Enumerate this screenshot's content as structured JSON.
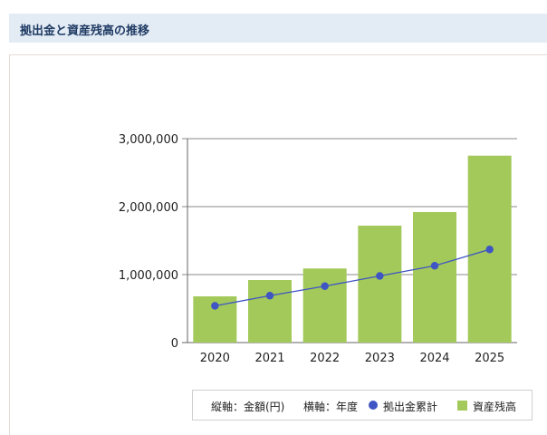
{
  "header": {
    "title": "拠出金と資産残高の推移"
  },
  "legend": {
    "yaxis_label": "縦軸：金額(円)",
    "xaxis_label": "横軸：年度",
    "line_label": "拠出金累計",
    "bar_label": "資産残高"
  },
  "colors": {
    "bar": "#a3c95a",
    "line": "#3f55c4",
    "header_bg": "#e3ecf5",
    "header_text": "#1f3a63"
  },
  "chart_data": {
    "type": "bar",
    "categories": [
      "2020",
      "2021",
      "2022",
      "2023",
      "2024",
      "2025"
    ],
    "series": [
      {
        "name": "資産残高",
        "type": "bar",
        "values": [
          680000,
          920000,
          1090000,
          1720000,
          1920000,
          2750000
        ]
      },
      {
        "name": "拠出金累計",
        "type": "line",
        "values": [
          540000,
          690000,
          830000,
          980000,
          1130000,
          1370000
        ]
      }
    ],
    "yticks": [
      "0",
      "1,000,000",
      "2,000,000",
      "3,000,000"
    ],
    "ytick_values": [
      0,
      1000000,
      2000000,
      3000000
    ],
    "ylim": [
      0,
      3000000
    ],
    "grid": true,
    "legend_position": "bottom-right"
  }
}
